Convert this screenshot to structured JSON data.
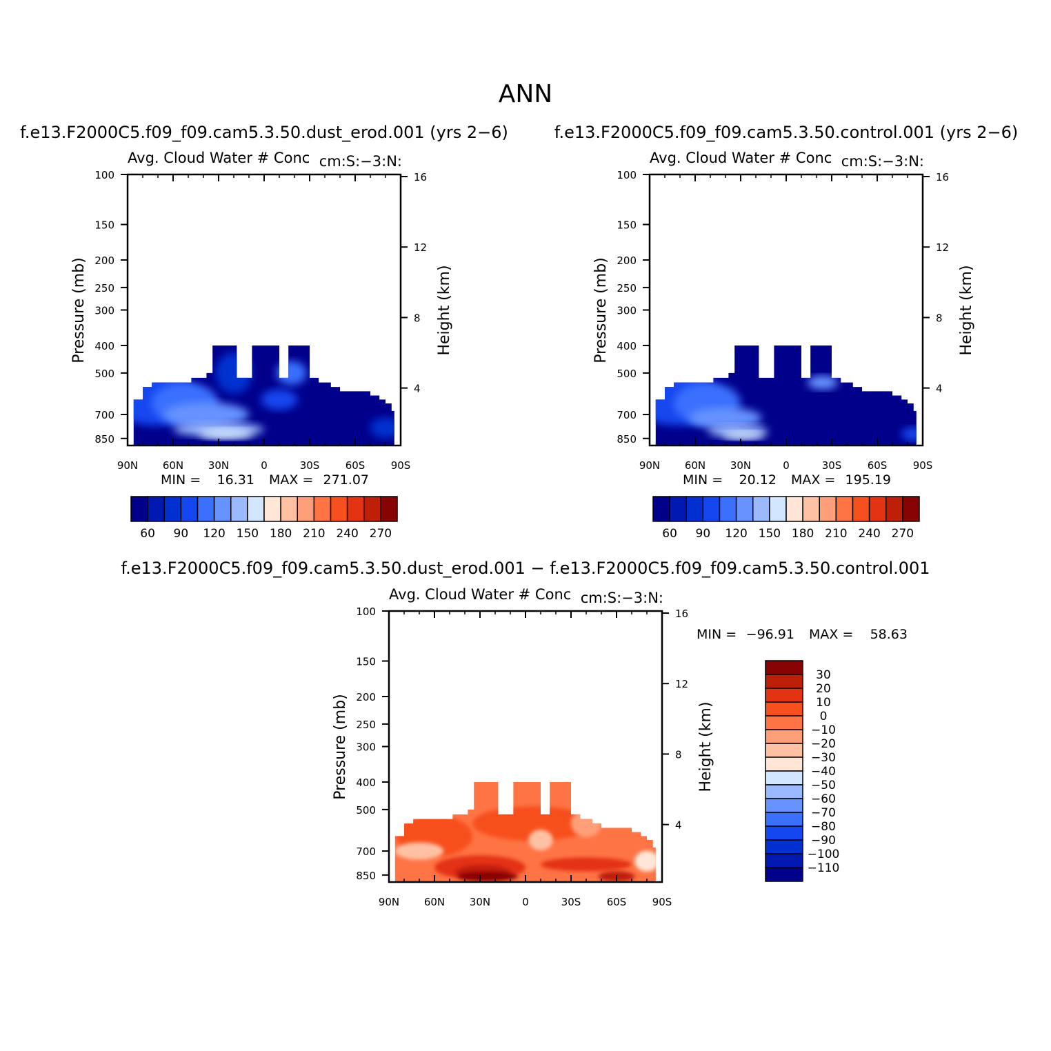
{
  "page_title": "ANN",
  "chart_data": [
    {
      "type": "heatmap",
      "title": "f.e13.F2000C5.f09_f09.cam5.3.50.dust_erod.001 (yrs 2−6)",
      "subtitle_left": "Avg. Cloud Water # Conc",
      "subtitle_right": "cm:S:−3:N:",
      "ylabel": "Pressure (mb)",
      "ylabel_right": "Height (km)",
      "x_ticks": [
        "90N",
        "60N",
        "30N",
        "0",
        "30S",
        "60S",
        "90S"
      ],
      "y_ticks": [
        100,
        150,
        200,
        250,
        300,
        400,
        500,
        700,
        850
      ],
      "y_ticks_right": [
        4,
        8,
        12,
        16
      ],
      "min_label": "MIN =",
      "min_value": "16.31",
      "max_label": "MAX =",
      "max_value": "271.07",
      "colorbar": {
        "orientation": "horizontal",
        "labels": [
          "60",
          "90",
          "120",
          "150",
          "180",
          "210",
          "240",
          "270"
        ],
        "colors": [
          "#00008b",
          "#0019b0",
          "#0030d0",
          "#1447ef",
          "#3b6ffe",
          "#6693ff",
          "#9ab9ff",
          "#d2e6ff",
          "#ffe6d6",
          "#ffc1a4",
          "#ff9f79",
          "#fe7445",
          "#f7501f",
          "#e43312",
          "#bd1f08",
          "#880404"
        ]
      }
    },
    {
      "type": "heatmap",
      "title": "f.e13.F2000C5.f09_f09.cam5.3.50.control.001 (yrs 2−6)",
      "subtitle_left": "Avg. Cloud Water # Conc",
      "subtitle_right": "cm:S:−3:N:",
      "ylabel": "Pressure (mb)",
      "ylabel_right": "Height (km)",
      "x_ticks": [
        "90N",
        "60N",
        "30N",
        "0",
        "30S",
        "60S",
        "90S"
      ],
      "y_ticks": [
        100,
        150,
        200,
        250,
        300,
        400,
        500,
        700,
        850
      ],
      "y_ticks_right": [
        4,
        8,
        12,
        16
      ],
      "min_label": "MIN =",
      "min_value": "20.12",
      "max_label": "MAX =",
      "max_value": "195.19",
      "colorbar": {
        "orientation": "horizontal",
        "labels": [
          "60",
          "90",
          "120",
          "150",
          "180",
          "210",
          "240",
          "270"
        ],
        "colors": [
          "#00008b",
          "#0019b0",
          "#0030d0",
          "#1447ef",
          "#3b6ffe",
          "#6693ff",
          "#9ab9ff",
          "#d2e6ff",
          "#ffe6d6",
          "#ffc1a4",
          "#ff9f79",
          "#fe7445",
          "#f7501f",
          "#e43312",
          "#bd1f08",
          "#880404"
        ]
      }
    },
    {
      "type": "heatmap",
      "title": "f.e13.F2000C5.f09_f09.cam5.3.50.dust_erod.001 − f.e13.F2000C5.f09_f09.cam5.3.50.control.001",
      "subtitle_left": "Avg. Cloud Water # Conc",
      "subtitle_right": "cm:S:−3:N:",
      "ylabel": "Pressure (mb)",
      "ylabel_right": "Height (km)",
      "x_ticks": [
        "90N",
        "60N",
        "30N",
        "0",
        "30S",
        "60S",
        "90S"
      ],
      "y_ticks": [
        100,
        150,
        200,
        250,
        300,
        400,
        500,
        700,
        850
      ],
      "y_ticks_right": [
        4,
        8,
        12,
        16
      ],
      "min_label": "MIN =",
      "min_value": "−96.91",
      "max_label": "MAX =",
      "max_value": "58.63",
      "colorbar": {
        "orientation": "vertical",
        "labels": [
          "30",
          "20",
          "10",
          "0",
          "−10",
          "−20",
          "−30",
          "−40",
          "−50",
          "−60",
          "−70",
          "−80",
          "−90",
          "−100",
          "−110"
        ],
        "colors": [
          "#880404",
          "#bd1f08",
          "#e43312",
          "#f7501f",
          "#fe7445",
          "#ff9f79",
          "#ffc1a4",
          "#ffe6d6",
          "#d2e6ff",
          "#9ab9ff",
          "#6693ff",
          "#3b6ffe",
          "#1447ef",
          "#0030d0",
          "#0019b0",
          "#00008b"
        ]
      }
    }
  ]
}
